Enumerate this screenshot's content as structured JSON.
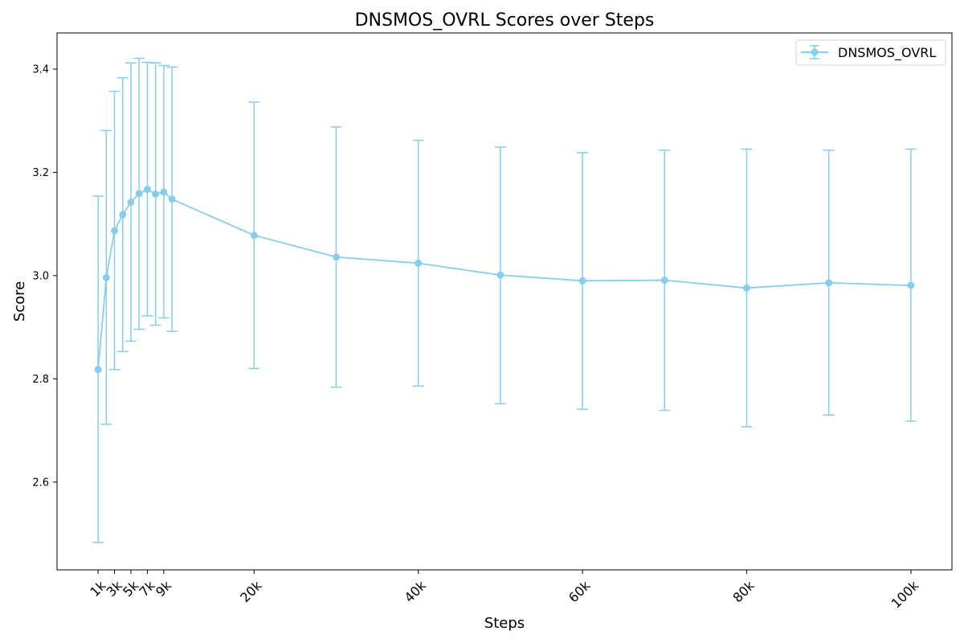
{
  "chart_data": {
    "type": "line",
    "title": "DNSMOS_OVRL Scores over Steps",
    "xlabel": "Steps",
    "ylabel": "Score",
    "xlim": [
      -4000,
      105000
    ],
    "ylim": [
      2.43,
      3.47
    ],
    "grid": false,
    "legend_position": "top-right",
    "x_ticks": [
      1000,
      3000,
      5000,
      7000,
      9000,
      20000,
      40000,
      60000,
      80000,
      100000
    ],
    "x_tick_labels": [
      "1k",
      "3k",
      "5k",
      "7k",
      "9k",
      "20k",
      "40k",
      "60k",
      "80k",
      "100k"
    ],
    "y_ticks": [
      2.6,
      2.8,
      3.0,
      3.2,
      3.4
    ],
    "y_tick_labels": [
      "2.6",
      "2.8",
      "3.0",
      "3.2",
      "3.4"
    ],
    "color": "#87ceeb",
    "series": [
      {
        "name": "DNSMOS_OVRL",
        "x": [
          1000,
          2000,
          3000,
          4000,
          5000,
          6000,
          7000,
          8000,
          9000,
          10000,
          20000,
          30000,
          40000,
          50000,
          60000,
          70000,
          80000,
          90000,
          100000
        ],
        "y": [
          2.818,
          2.996,
          3.087,
          3.118,
          3.142,
          3.159,
          3.167,
          3.158,
          3.162,
          3.148,
          3.078,
          3.036,
          3.024,
          3.001,
          2.99,
          2.991,
          2.976,
          2.986,
          2.981
        ],
        "yerr_low": [
          2.483,
          2.712,
          2.818,
          2.853,
          2.873,
          2.896,
          2.922,
          2.904,
          2.918,
          2.892,
          2.82,
          2.784,
          2.786,
          2.752,
          2.741,
          2.739,
          2.707,
          2.73,
          2.718
        ],
        "yerr_high": [
          3.154,
          3.281,
          3.357,
          3.383,
          3.412,
          3.421,
          3.413,
          3.412,
          3.407,
          3.404,
          3.336,
          3.288,
          3.262,
          3.249,
          3.238,
          3.243,
          3.245,
          3.243,
          3.245
        ]
      }
    ]
  }
}
